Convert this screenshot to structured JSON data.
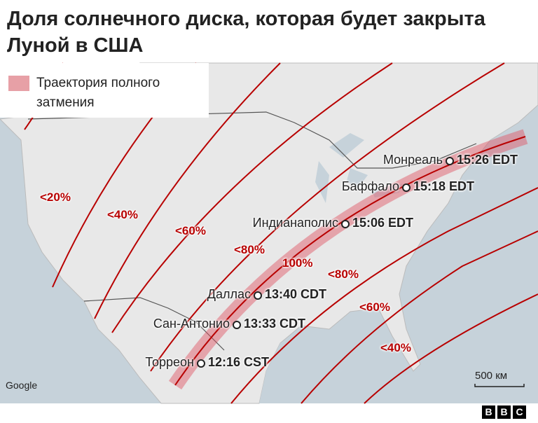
{
  "header": {
    "title": "Доля солнечного диска, которая будет закрыта Луной в США"
  },
  "legend": {
    "label": "Траектория полного затмения"
  },
  "zones": [
    "<20%",
    "<40%",
    "<60%",
    "<80%",
    "100%",
    "<80%",
    "<60%",
    "<40%"
  ],
  "cities": [
    {
      "name": "Монреаль",
      "time": "15:26 EDT"
    },
    {
      "name": "Баффало",
      "time": "15:18 EDT"
    },
    {
      "name": "Индианаполис",
      "time": "15:06 EDT"
    },
    {
      "name": "Даллас",
      "time": "13:40 CDT"
    },
    {
      "name": "Сан-Антонио",
      "time": "13:33 CDT"
    },
    {
      "name": "Торреон",
      "time": "12:16 CST"
    }
  ],
  "scale": "500 км",
  "attribution": "Google",
  "logo": [
    "B",
    "B",
    "C"
  ]
}
